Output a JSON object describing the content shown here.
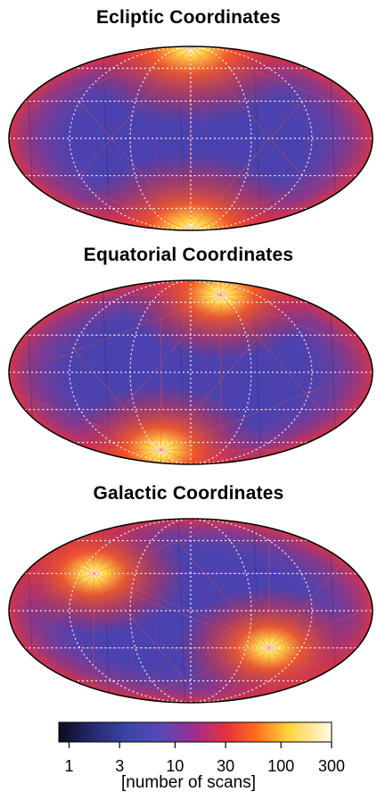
{
  "chart_data": [
    {
      "type": "heatmap",
      "title": "Ecliptic Coordinates",
      "projection": "mollweide",
      "grid": true,
      "hotspots": [
        {
          "lon": 0,
          "lat": 90,
          "level": 150
        },
        {
          "lon": 0,
          "lat": -90,
          "level": 150
        }
      ]
    },
    {
      "type": "heatmap",
      "title": "Equatorial Coordinates",
      "projection": "mollweide",
      "grid": true,
      "hotspots": [
        {
          "lon": 55,
          "lat": 68,
          "level": 120
        },
        {
          "lon": -55,
          "lat": -68,
          "level": 120
        }
      ]
    },
    {
      "type": "heatmap",
      "title": "Galactic Coordinates",
      "projection": "mollweide",
      "grid": true,
      "hotspots": [
        {
          "lon": -105,
          "lat": 30,
          "level": 110
        },
        {
          "lon": 85,
          "lat": -30,
          "level": 110
        }
      ]
    }
  ],
  "colorbar": {
    "scale": "log",
    "range": [
      0.8,
      300
    ],
    "ticks": [
      {
        "value": 1,
        "label": "1"
      },
      {
        "value": 3,
        "label": "3"
      },
      {
        "value": 10,
        "label": "10"
      },
      {
        "value": 30,
        "label": "30"
      },
      {
        "value": 100,
        "label": "100"
      },
      {
        "value": 300,
        "label": "300"
      }
    ],
    "label": "[number of scans]",
    "colors": [
      "#0a0a1e",
      "#26286a",
      "#3a46a8",
      "#5a48b8",
      "#a02c8a",
      "#e8333a",
      "#ff6a1e",
      "#ffd23a",
      "#fffbe6"
    ]
  }
}
